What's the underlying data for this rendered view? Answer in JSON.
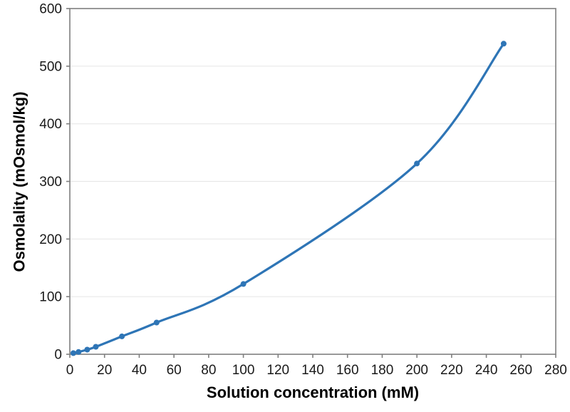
{
  "chart_data": {
    "type": "line",
    "title": "",
    "xlabel": "Solution concentration (mM)",
    "ylabel": "Osmolality (mOsmol/kg)",
    "x": [
      2,
      5,
      10,
      15,
      30,
      50,
      100,
      200,
      250
    ],
    "y": [
      2,
      4,
      8,
      13,
      31,
      55,
      122,
      331,
      539
    ],
    "xlim": [
      0,
      280
    ],
    "ylim": [
      0,
      600
    ],
    "xtick_step": 20,
    "ytick_step": 100,
    "xtick_labels": [
      "0",
      "20",
      "40",
      "60",
      "80",
      "100",
      "120",
      "140",
      "160",
      "180",
      "200",
      "220",
      "240",
      "260",
      "280"
    ],
    "ytick_labels": [
      "0",
      "100",
      "200",
      "300",
      "400",
      "500",
      "600"
    ],
    "smooth": true,
    "marker": "circle",
    "legend": "none",
    "grid": "horizontal",
    "colors": {
      "line": "#2E75B6",
      "marker": "#2E75B6",
      "grid": "#E8E8E8",
      "axis": "#7F7F7F",
      "tick_text": "#1A1A1A",
      "title_text": "#000000",
      "background": "#FFFFFF"
    }
  }
}
